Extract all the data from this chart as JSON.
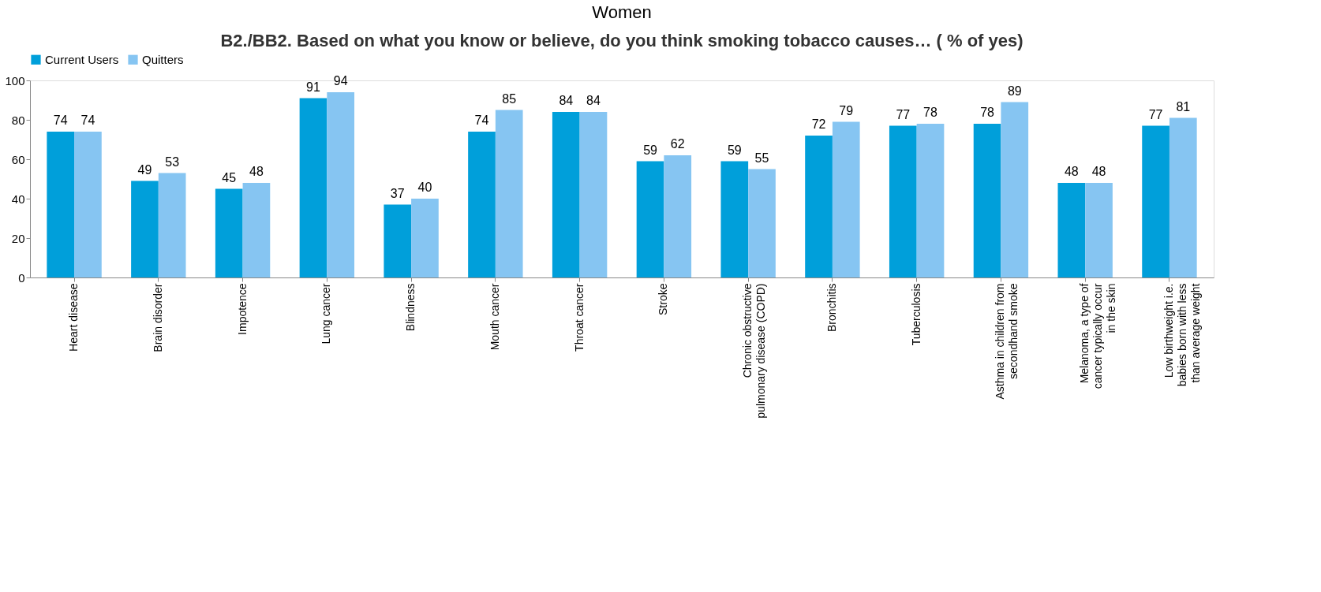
{
  "chart_data": {
    "type": "bar",
    "title": "B2./BB2. Based on what you know or believe, do you think smoking tobacco causes… ( % of yes)",
    "subtitle": "Women",
    "categories": [
      "Heart disease",
      "Brain disorder",
      "Impotence",
      "Lung cancer",
      "Blindness",
      "Mouth cancer",
      "Throat cancer",
      "Stroke",
      "Chronic obstructive pulmonary disease (COPD)",
      "Bronchitis",
      "Tuberculosis",
      "Asthma in children from secondhand smoke",
      "Melanoma, a type of cancer typically occur in the skin",
      "Low birthweight i.e. babies born with less than average weight"
    ],
    "series": [
      {
        "name": "Current Users",
        "color": "#009fda",
        "values": [
          74,
          49,
          45,
          91,
          37,
          74,
          84,
          59,
          59,
          72,
          77,
          78,
          48,
          77
        ]
      },
      {
        "name": "Quitters",
        "color": "#86c5f2",
        "values": [
          74,
          53,
          48,
          94,
          40,
          85,
          84,
          62,
          55,
          79,
          78,
          89,
          48,
          81
        ]
      }
    ],
    "ylim": [
      0,
      100
    ],
    "yticks": [
      0,
      20,
      40,
      60,
      80,
      100
    ],
    "grid": false,
    "legend": "top",
    "data_labels": true
  }
}
